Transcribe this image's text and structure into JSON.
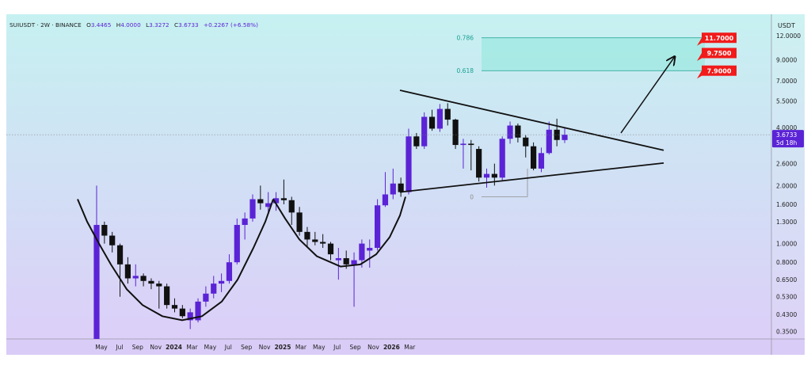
{
  "header": {
    "symbol": "SUIUSDT · 2W · BINANCE",
    "open_label": "O",
    "open": "3.4465",
    "high_label": "H",
    "high": "4.0000",
    "low_label": "L",
    "low": "3.3272",
    "close_label": "C",
    "close": "3.6733",
    "change": "+0.2267 (+6.58%)"
  },
  "price_axis": {
    "currency": "USDT",
    "ticks": [
      "12.0000",
      "9.0000",
      "7.0000",
      "5.5000",
      "4.0000",
      "2.6000",
      "2.0000",
      "1.6000",
      "1.3000",
      "1.0000",
      "0.8000",
      "0.6500",
      "0.5300",
      "0.4300",
      "0.3500"
    ],
    "tick_values": [
      12.0,
      9.0,
      7.0,
      5.5,
      4.0,
      2.6,
      2.0,
      1.6,
      1.3,
      1.0,
      0.8,
      0.65,
      0.53,
      0.43,
      0.35
    ],
    "scale": "log",
    "ylim": [
      0.32,
      15.5
    ],
    "hidden_ticks": [
      "3.0000"
    ],
    "current_price_label": "3.6733",
    "current_price": 3.6733,
    "countdown_label": "5d 18h"
  },
  "time_axis": {
    "labels": [
      "May",
      "Jul",
      "Sep",
      "Nov",
      "2024",
      "Mar",
      "May",
      "Jul",
      "Sep",
      "Nov",
      "2025",
      "Mar",
      "May",
      "Jul",
      "Sep",
      "Nov",
      "2026",
      "Mar"
    ],
    "bold": [
      false,
      false,
      false,
      false,
      true,
      false,
      false,
      false,
      false,
      false,
      true,
      false,
      false,
      false,
      false,
      false,
      true,
      false
    ],
    "months_since_start": [
      0,
      2,
      4,
      6,
      8,
      10,
      12,
      14,
      16,
      18,
      20,
      22,
      24,
      26,
      28,
      30,
      32,
      34
    ],
    "start_month": "2023-05"
  },
  "targets": [
    {
      "label": "11.7000",
      "value": 11.7
    },
    {
      "label": "9.7500",
      "value": 9.75
    },
    {
      "label": "7.9000",
      "value": 7.9
    }
  ],
  "fib": [
    {
      "label": "0.786",
      "value": 11.7
    },
    {
      "label": "0.618",
      "value": 7.9
    },
    {
      "label": "0",
      "value": 1.75
    }
  ],
  "colors": {
    "bull": "#5b23d6",
    "bear": "#111111",
    "target": "#f11b1b",
    "zone": "#9ee8e0",
    "fib_line": "#18a08f",
    "price_tag": "#5b23d6"
  },
  "chart_data": {
    "type": "candlestick",
    "title": "SUIUSDT · 2W · BINANCE",
    "interval": "2W",
    "scale": "log",
    "ylim": [
      0.32,
      15.5
    ],
    "candles": [
      {
        "date": "2023-05-01",
        "o": 0.3,
        "h": 2.0,
        "l": 0.3,
        "c": 1.25
      },
      {
        "date": "2023-05-15",
        "o": 1.25,
        "h": 1.3,
        "l": 1.0,
        "c": 1.1
      },
      {
        "date": "2023-05-29",
        "o": 1.1,
        "h": 1.15,
        "l": 0.9,
        "c": 0.98
      },
      {
        "date": "2023-06-12",
        "o": 0.98,
        "h": 1.0,
        "l": 0.53,
        "c": 0.78
      },
      {
        "date": "2023-06-26",
        "o": 0.78,
        "h": 0.85,
        "l": 0.62,
        "c": 0.66
      },
      {
        "date": "2023-07-10",
        "o": 0.66,
        "h": 0.78,
        "l": 0.6,
        "c": 0.68
      },
      {
        "date": "2023-07-24",
        "o": 0.68,
        "h": 0.7,
        "l": 0.6,
        "c": 0.64
      },
      {
        "date": "2023-08-07",
        "o": 0.64,
        "h": 0.66,
        "l": 0.58,
        "c": 0.62
      },
      {
        "date": "2023-08-21",
        "o": 0.62,
        "h": 0.64,
        "l": 0.46,
        "c": 0.6
      },
      {
        "date": "2023-09-04",
        "o": 0.6,
        "h": 0.62,
        "l": 0.46,
        "c": 0.48
      },
      {
        "date": "2023-09-18",
        "o": 0.48,
        "h": 0.52,
        "l": 0.44,
        "c": 0.46
      },
      {
        "date": "2023-10-02",
        "o": 0.46,
        "h": 0.48,
        "l": 0.41,
        "c": 0.42
      },
      {
        "date": "2023-10-16",
        "o": 0.4,
        "h": 0.46,
        "l": 0.36,
        "c": 0.44
      },
      {
        "date": "2023-10-30",
        "o": 0.4,
        "h": 0.52,
        "l": 0.39,
        "c": 0.5
      },
      {
        "date": "2023-11-13",
        "o": 0.5,
        "h": 0.6,
        "l": 0.47,
        "c": 0.55
      },
      {
        "date": "2023-11-27",
        "o": 0.55,
        "h": 0.68,
        "l": 0.52,
        "c": 0.62
      },
      {
        "date": "2023-12-11",
        "o": 0.62,
        "h": 0.7,
        "l": 0.56,
        "c": 0.64
      },
      {
        "date": "2023-12-25",
        "o": 0.64,
        "h": 0.88,
        "l": 0.62,
        "c": 0.8
      },
      {
        "date": "2024-01-08",
        "o": 0.8,
        "h": 1.35,
        "l": 0.78,
        "c": 1.25
      },
      {
        "date": "2024-01-22",
        "o": 1.25,
        "h": 1.45,
        "l": 1.05,
        "c": 1.35
      },
      {
        "date": "2024-02-05",
        "o": 1.35,
        "h": 1.8,
        "l": 1.3,
        "c": 1.7
      },
      {
        "date": "2024-02-19",
        "o": 1.7,
        "h": 2.0,
        "l": 1.5,
        "c": 1.62
      },
      {
        "date": "2024-03-04",
        "o": 1.55,
        "h": 1.85,
        "l": 1.45,
        "c": 1.62
      },
      {
        "date": "2024-03-18",
        "o": 1.62,
        "h": 1.85,
        "l": 1.48,
        "c": 1.72
      },
      {
        "date": "2024-04-01",
        "o": 1.72,
        "h": 2.15,
        "l": 1.6,
        "c": 1.68
      },
      {
        "date": "2024-04-15",
        "o": 1.68,
        "h": 1.75,
        "l": 1.25,
        "c": 1.45
      },
      {
        "date": "2024-04-29",
        "o": 1.45,
        "h": 1.55,
        "l": 1.1,
        "c": 1.15
      },
      {
        "date": "2024-05-13",
        "o": 1.15,
        "h": 1.22,
        "l": 0.96,
        "c": 1.05
      },
      {
        "date": "2024-05-27",
        "o": 1.05,
        "h": 1.15,
        "l": 0.98,
        "c": 1.02
      },
      {
        "date": "2024-06-10",
        "o": 1.02,
        "h": 1.12,
        "l": 0.95,
        "c": 1.0
      },
      {
        "date": "2024-06-24",
        "o": 1.0,
        "h": 1.02,
        "l": 0.82,
        "c": 0.88
      },
      {
        "date": "2024-07-08",
        "o": 0.82,
        "h": 0.95,
        "l": 0.65,
        "c": 0.84
      },
      {
        "date": "2024-07-22",
        "o": 0.84,
        "h": 0.92,
        "l": 0.74,
        "c": 0.78
      },
      {
        "date": "2024-08-05",
        "o": 0.78,
        "h": 0.9,
        "l": 0.47,
        "c": 0.82
      },
      {
        "date": "2024-08-19",
        "o": 0.82,
        "h": 1.05,
        "l": 0.75,
        "c": 1.0
      },
      {
        "date": "2024-09-02",
        "o": 0.92,
        "h": 1.05,
        "l": 0.75,
        "c": 0.95
      },
      {
        "date": "2024-09-16",
        "o": 0.95,
        "h": 1.7,
        "l": 0.92,
        "c": 1.58
      },
      {
        "date": "2024-09-30",
        "o": 1.58,
        "h": 2.35,
        "l": 1.55,
        "c": 1.8
      },
      {
        "date": "2024-10-14",
        "o": 1.8,
        "h": 2.45,
        "l": 1.7,
        "c": 2.05
      },
      {
        "date": "2024-10-28",
        "o": 2.05,
        "h": 2.2,
        "l": 1.75,
        "c": 1.85
      },
      {
        "date": "2024-11-11",
        "o": 1.85,
        "h": 3.95,
        "l": 1.8,
        "c": 3.6
      },
      {
        "date": "2024-11-25",
        "o": 3.6,
        "h": 3.75,
        "l": 3.1,
        "c": 3.2
      },
      {
        "date": "2024-12-09",
        "o": 3.2,
        "h": 4.8,
        "l": 3.1,
        "c": 4.55
      },
      {
        "date": "2024-12-23",
        "o": 4.55,
        "h": 4.95,
        "l": 3.85,
        "c": 3.95
      },
      {
        "date": "2025-01-06",
        "o": 3.95,
        "h": 5.3,
        "l": 3.8,
        "c": 5.0
      },
      {
        "date": "2025-01-20",
        "o": 5.0,
        "h": 5.35,
        "l": 4.1,
        "c": 4.4
      },
      {
        "date": "2025-02-03",
        "o": 4.4,
        "h": 4.45,
        "l": 3.1,
        "c": 3.25
      },
      {
        "date": "2025-02-17",
        "o": 3.25,
        "h": 3.5,
        "l": 2.45,
        "c": 3.3
      },
      {
        "date": "2025-03-03",
        "o": 3.3,
        "h": 3.45,
        "l": 2.4,
        "c": 3.25
      },
      {
        "date": "2025-03-17",
        "o": 3.1,
        "h": 3.2,
        "l": 2.1,
        "c": 2.2
      },
      {
        "date": "2025-03-31",
        "o": 2.2,
        "h": 2.45,
        "l": 1.95,
        "c": 2.3
      },
      {
        "date": "2025-04-14",
        "o": 2.3,
        "h": 2.6,
        "l": 2.0,
        "c": 2.2
      },
      {
        "date": "2025-04-28",
        "o": 2.2,
        "h": 3.6,
        "l": 2.1,
        "c": 3.5
      },
      {
        "date": "2025-05-12",
        "o": 3.5,
        "h": 4.3,
        "l": 3.3,
        "c": 4.1
      },
      {
        "date": "2025-05-26",
        "o": 4.1,
        "h": 4.2,
        "l": 3.35,
        "c": 3.55
      },
      {
        "date": "2025-06-09",
        "o": 3.55,
        "h": 3.65,
        "l": 2.8,
        "c": 3.2
      },
      {
        "date": "2025-06-23",
        "o": 3.2,
        "h": 3.35,
        "l": 2.4,
        "c": 2.45
      },
      {
        "date": "2025-07-07",
        "o": 2.45,
        "h": 3.15,
        "l": 2.35,
        "c": 2.95
      },
      {
        "date": "2025-07-21",
        "o": 2.95,
        "h": 4.3,
        "l": 2.9,
        "c": 3.9
      },
      {
        "date": "2025-08-04",
        "o": 3.9,
        "h": 4.45,
        "l": 3.2,
        "c": 3.45
      },
      {
        "date": "2025-08-18",
        "o": 3.4465,
        "h": 4.0,
        "l": 3.3272,
        "c": 3.6733
      }
    ]
  }
}
